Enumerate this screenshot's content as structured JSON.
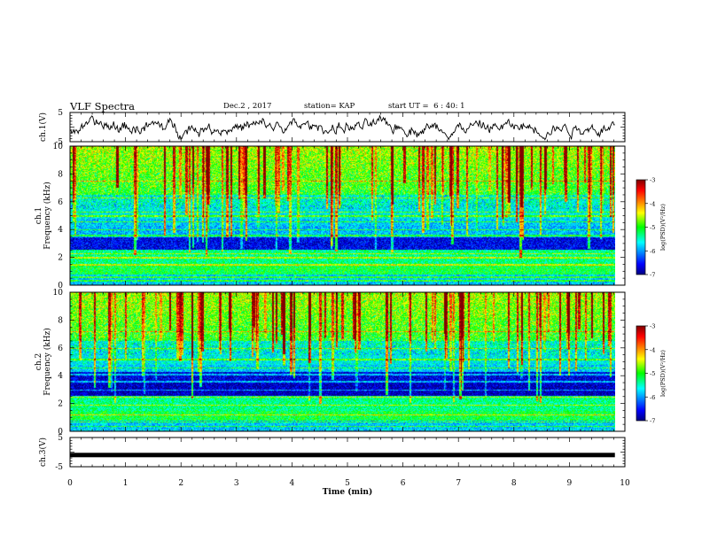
{
  "header": {
    "title": "VLF Spectra",
    "date": "Dec.2 , 2017",
    "station": "station= KAP",
    "start_ut": "start UT =  6 : 40: 1"
  },
  "chart_data": [
    {
      "type": "line",
      "panel": "ch1-waveform",
      "ylabel": "ch.1(V)",
      "ylim": [
        -5,
        5
      ],
      "yticks": [
        "5",
        "-5"
      ],
      "note": "noisy time series around 0 V"
    },
    {
      "type": "heatmap",
      "panel": "ch1-spectrogram",
      "ylabel": "ch.1\nFrequency (kHz)",
      "ylabel_line1": "ch.1",
      "ylabel_line2": "Frequency (kHz)",
      "ylim": [
        0,
        10
      ],
      "yticks": [
        "0",
        "2",
        "4",
        "6",
        "8",
        "10"
      ],
      "colorbar": {
        "label": "log(PSD)(V²/Hz)",
        "range": [
          -7,
          -3
        ],
        "ticks": [
          "-3",
          "-4",
          "-5",
          "-6",
          "-7"
        ]
      }
    },
    {
      "type": "heatmap",
      "panel": "ch2-spectrogram",
      "ylabel_line1": "ch.2",
      "ylabel_line2": "Frequency (kHz)",
      "ylim": [
        0,
        10
      ],
      "yticks": [
        "0",
        "2",
        "4",
        "6",
        "8",
        "10"
      ],
      "colorbar": {
        "label": "log(PSD)(V²/Hz)",
        "range": [
          -7,
          -3
        ],
        "ticks": [
          "-3",
          "-4",
          "-5",
          "-6",
          "-7"
        ]
      }
    },
    {
      "type": "line",
      "panel": "ch3-waveform",
      "ylabel": "ch.3(V)",
      "ylim": [
        -5,
        5
      ],
      "yticks": [
        "5",
        "-5"
      ],
      "note": "nearly flat trace at about -1 V"
    }
  ],
  "xaxis": {
    "label": "Time (min)",
    "range": [
      0,
      10
    ],
    "ticks": [
      "0",
      "1",
      "2",
      "3",
      "4",
      "5",
      "6",
      "7",
      "8",
      "9",
      "10"
    ]
  }
}
